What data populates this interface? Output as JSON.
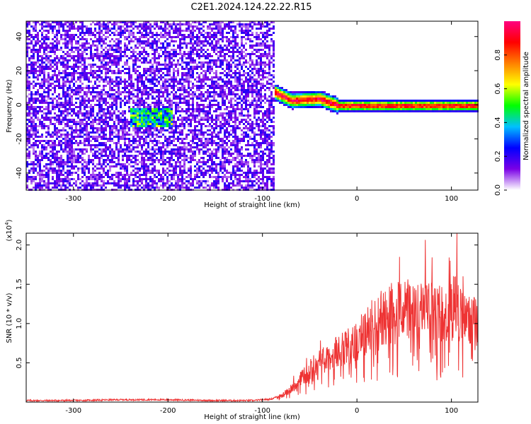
{
  "title": "C2E1.2024.124.22.22.R15",
  "chart_data": [
    {
      "type": "heatmap",
      "xlabel": "Height of straight line (km)",
      "ylabel": "Frequency (Hz)",
      "xlim": [
        -350,
        128
      ],
      "ylim": [
        -50,
        49
      ],
      "x_ticks": [
        -300,
        -200,
        -100,
        0,
        100
      ],
      "x_tick_labels": [
        "-300",
        "-200",
        "-100",
        "0",
        "100"
      ],
      "y_ticks": [
        -40,
        -20,
        0,
        20,
        40
      ],
      "y_tick_labels": [
        "-40",
        "-20",
        "0",
        "20",
        "40"
      ],
      "colorbar": {
        "label": "Normalized spectral amplitude",
        "range": [
          0,
          1
        ],
        "ticks": [
          0.0,
          0.2,
          0.4,
          0.6,
          0.8
        ],
        "tick_labels": [
          "0.0",
          "0.2",
          "0.4",
          "0.6",
          "0.8"
        ],
        "colors": [
          "#ffffff",
          "#7a00e6",
          "#0000ff",
          "#00c0ff",
          "#00ff00",
          "#ffff00",
          "#ff8000",
          "#ff0000",
          "#ff0080"
        ]
      },
      "regions": [
        {
          "x_range": [
            -350,
            -88
          ],
          "description_level": "noise",
          "amplitude": 0.15
        },
        {
          "x_range": [
            -240,
            -195
          ],
          "center_freq": -7,
          "amplitude": 0.45
        },
        {
          "x_range": [
            -88,
            128
          ],
          "center_freq_trend": [
            [
              -88,
              8
            ],
            [
              -70,
              3
            ],
            [
              -40,
              4
            ],
            [
              -20,
              0
            ],
            [
              0,
              0
            ],
            [
              128,
              0
            ]
          ],
          "amplitude": 0.85
        }
      ]
    },
    {
      "type": "line",
      "xlabel": "Height of straight line (km)",
      "ylabel": "SNR (10 * v/v)",
      "y_scale_label": "(x10",
      "y_scale_exp": "4",
      "y_scale_suffix": ")",
      "xlim": [
        -350,
        128
      ],
      "ylim": [
        0,
        2.15
      ],
      "x_ticks": [
        -300,
        -200,
        -100,
        0,
        100
      ],
      "x_tick_labels": [
        "-300",
        "-200",
        "-100",
        "0",
        "100"
      ],
      "y_ticks": [
        0.5,
        1.0,
        1.5,
        2.0
      ],
      "y_tick_labels": [
        "0.5",
        "1.0",
        "1.5",
        "2.0"
      ],
      "series_color": "#ee3333",
      "series": [
        {
          "x": [
            -350,
            -300,
            -250,
            -200,
            -150,
            -110,
            -90,
            -80,
            -70,
            -60,
            -50,
            -40,
            -30,
            -20,
            -10,
            0,
            10,
            20,
            30,
            40,
            50,
            60,
            70,
            80,
            90,
            100,
            105,
            110,
            120,
            128
          ],
          "values": [
            0.02,
            0.02,
            0.03,
            0.03,
            0.02,
            0.02,
            0.04,
            0.1,
            0.2,
            0.35,
            0.5,
            0.6,
            0.7,
            0.8,
            0.85,
            0.95,
            1.1,
            1.25,
            1.35,
            1.4,
            1.42,
            1.42,
            1.4,
            1.38,
            1.35,
            1.38,
            1.6,
            1.3,
            1.25,
            1.25
          ]
        }
      ]
    }
  ]
}
